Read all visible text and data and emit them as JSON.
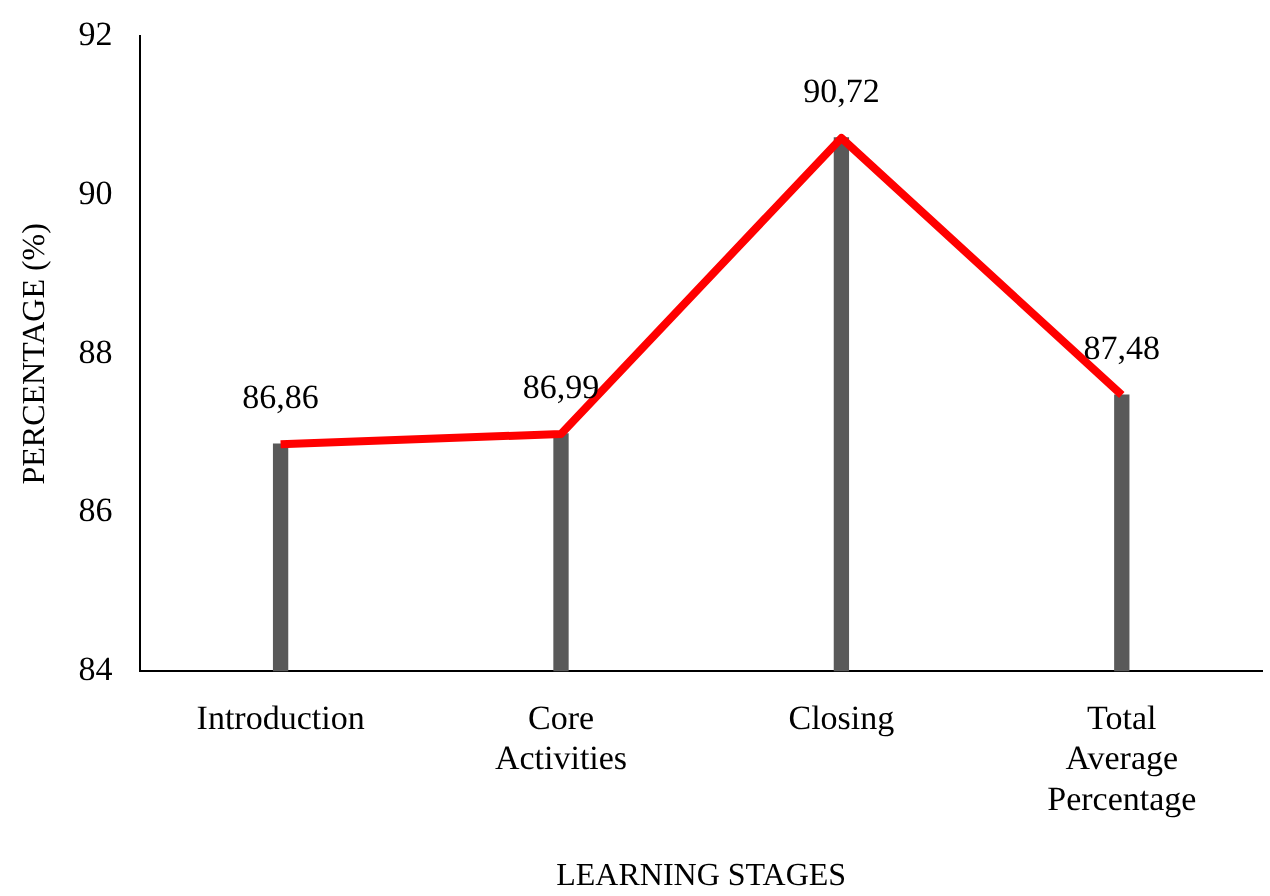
{
  "chart_data": {
    "type": "bar",
    "xlabel": "LEARNING STAGES",
    "ylabel": "PERCENTAGE (%)",
    "categories": [
      "Introduction",
      "Core Activities",
      "Closing",
      "Total Average Percentage"
    ],
    "series": [
      {
        "color": "#595959",
        "values": [
          86.86,
          86.99,
          90.72,
          87.48
        ]
      },
      {
        "type": "line",
        "color": "#ff0000",
        "values": [
          86.86,
          86.99,
          90.72,
          87.48
        ],
        "value_labels": [
          "86,86",
          "86,99",
          "90,72",
          "87,48"
        ]
      }
    ],
    "ylim": [
      84,
      92
    ],
    "yticks": [
      84,
      86,
      88,
      90,
      92
    ],
    "grid": false,
    "legend": false,
    "marker": "none",
    "line_style": "solid"
  }
}
